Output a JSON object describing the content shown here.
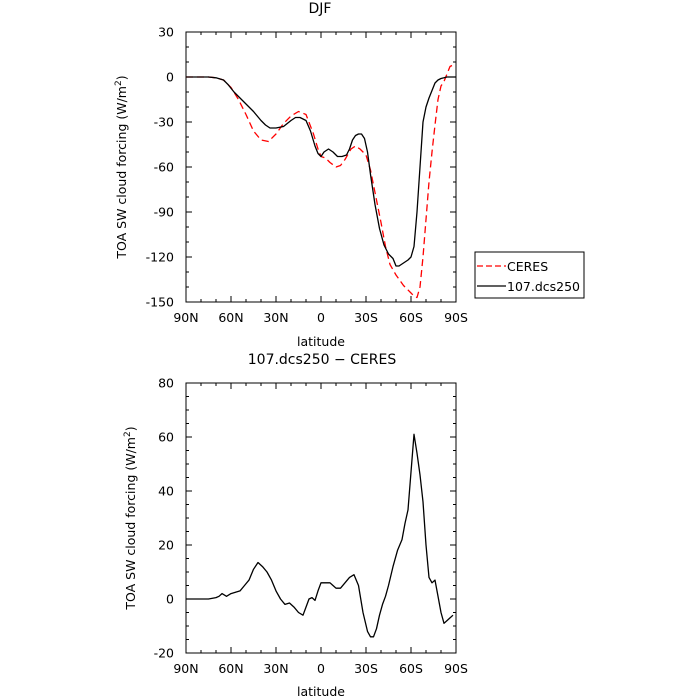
{
  "chart_data": [
    {
      "type": "line",
      "title": "DJF",
      "xlabel": "latitude",
      "ylabel": "TOA SW cloud forcing (W/m",
      "ylabel_sup": "2",
      "ylabel_close": ")",
      "xlim": [
        90,
        -90
      ],
      "ylim": [
        -150,
        30
      ],
      "xticks": [
        {
          "value": 90,
          "label": "90N"
        },
        {
          "value": 60,
          "label": "60N"
        },
        {
          "value": 30,
          "label": "30N"
        },
        {
          "value": 0,
          "label": "0"
        },
        {
          "value": -30,
          "label": "30S"
        },
        {
          "value": -60,
          "label": "60S"
        },
        {
          "value": -90,
          "label": "90S"
        }
      ],
      "yticks": [
        {
          "value": 30,
          "label": "30"
        },
        {
          "value": 0,
          "label": "0"
        },
        {
          "value": -30,
          "label": "-30"
        },
        {
          "value": -60,
          "label": "-60"
        },
        {
          "value": -90,
          "label": "-90"
        },
        {
          "value": -120,
          "label": "-120"
        },
        {
          "value": -150,
          "label": "-150"
        }
      ],
      "legend": {
        "placement": "outside-right",
        "entries": [
          "CERES",
          "107.dcs250"
        ]
      },
      "series": [
        {
          "name": "CERES",
          "color": "#ff0000",
          "dash": "dashed",
          "x": [
            90,
            85,
            80,
            75,
            70,
            65,
            60,
            55,
            50,
            45,
            40,
            35,
            30,
            25,
            20,
            15,
            10,
            5,
            2,
            0,
            -3,
            -6,
            -10,
            -13,
            -16,
            -20,
            -23,
            -26,
            -30,
            -33,
            -36,
            -40,
            -43,
            -46,
            -50,
            -55,
            -60,
            -62,
            -64,
            -66,
            -68,
            -70,
            -72,
            -74,
            -76,
            -78,
            -80,
            -82,
            -84,
            -86,
            -88
          ],
          "values": [
            0,
            0,
            0,
            0,
            -0.5,
            -2,
            -7,
            -15,
            -25,
            -36,
            -42,
            -43,
            -38,
            -31,
            -26,
            -23,
            -25,
            -38,
            -48,
            -53,
            -54,
            -57,
            -60,
            -59,
            -55,
            -48,
            -46,
            -48,
            -52,
            -62,
            -77,
            -97,
            -113,
            -125,
            -132,
            -139,
            -144,
            -146,
            -147,
            -140,
            -120,
            -95,
            -70,
            -50,
            -32,
            -15,
            -6,
            -3,
            2,
            7,
            8
          ]
        },
        {
          "name": "107.dcs250",
          "color": "#000000",
          "dash": "solid",
          "x": [
            90,
            85,
            80,
            75,
            70,
            65,
            62,
            58,
            55,
            50,
            45,
            40,
            37,
            34,
            30,
            25,
            20,
            17,
            14,
            10,
            7,
            4,
            2,
            0,
            -2,
            -5,
            -8,
            -11,
            -14,
            -17,
            -19,
            -21,
            -23,
            -25,
            -27,
            -29,
            -31,
            -33,
            -36,
            -39,
            -42,
            -45,
            -48,
            -50,
            -52,
            -55,
            -58,
            -60,
            -62,
            -64,
            -66,
            -68,
            -70,
            -72,
            -74,
            -76,
            -78,
            -80,
            -82,
            -84,
            -86,
            -88,
            -90
          ],
          "values": [
            0,
            0,
            0,
            0,
            -0.5,
            -2,
            -5,
            -10,
            -13,
            -18,
            -23,
            -29,
            -32,
            -34,
            -34,
            -33,
            -29,
            -27,
            -27,
            -29,
            -36,
            -46,
            -51,
            -53,
            -50,
            -48,
            -50,
            -53,
            -53,
            -52,
            -48,
            -42,
            -39,
            -38,
            -38,
            -41,
            -50,
            -65,
            -85,
            -101,
            -112,
            -118,
            -121,
            -126,
            -126,
            -124,
            -122,
            -120,
            -113,
            -90,
            -60,
            -30,
            -20,
            -14,
            -9,
            -4,
            -2,
            -1,
            -0.5,
            0,
            0,
            0,
            0
          ]
        }
      ]
    },
    {
      "type": "line",
      "title": "107.dcs250 − CERES",
      "xlabel": "latitude",
      "ylabel": "TOA SW cloud forcing (W/m",
      "ylabel_sup": "2",
      "ylabel_close": ")",
      "xlim": [
        90,
        -90
      ],
      "ylim": [
        -20,
        80
      ],
      "xticks": [
        {
          "value": 90,
          "label": "90N"
        },
        {
          "value": 60,
          "label": "60N"
        },
        {
          "value": 30,
          "label": "30N"
        },
        {
          "value": 0,
          "label": "0"
        },
        {
          "value": -30,
          "label": "30S"
        },
        {
          "value": -60,
          "label": "60S"
        },
        {
          "value": -90,
          "label": "90S"
        }
      ],
      "yticks": [
        {
          "value": 80,
          "label": "80"
        },
        {
          "value": 60,
          "label": "60"
        },
        {
          "value": 40,
          "label": "40"
        },
        {
          "value": 20,
          "label": "20"
        },
        {
          "value": 0,
          "label": "0"
        },
        {
          "value": -20,
          "label": "-20"
        }
      ],
      "series": [
        {
          "name": "107.dcs250 − CERES",
          "color": "#000000",
          "dash": "solid",
          "x": [
            90,
            80,
            75,
            70,
            68,
            66,
            63,
            60,
            57,
            54,
            51,
            48,
            45,
            42,
            39,
            36,
            33,
            30,
            27,
            24,
            21,
            18,
            15,
            12,
            10,
            8,
            6,
            4,
            2,
            0,
            -2,
            -4,
            -6,
            -8,
            -10,
            -13,
            -16,
            -19,
            -22,
            -25,
            -28,
            -31,
            -33,
            -35,
            -37,
            -39,
            -41,
            -43,
            -45,
            -48,
            -51,
            -54,
            -56,
            -58,
            -60,
            -62,
            -64,
            -66,
            -68,
            -70,
            -72,
            -74,
            -76,
            -78,
            -80,
            -82,
            -84,
            -86,
            -88
          ],
          "values": [
            0,
            0,
            0,
            0.5,
            1,
            2,
            1,
            2,
            2.5,
            3,
            5,
            7,
            11,
            13.5,
            12,
            10,
            7,
            3,
            0,
            -2,
            -1.5,
            -3,
            -5,
            -6,
            -3,
            0,
            0.5,
            -0.5,
            3,
            6,
            6,
            6,
            6,
            5,
            4,
            4,
            6,
            8,
            9,
            5,
            -5,
            -12,
            -14,
            -14,
            -11,
            -6,
            -2,
            1,
            5,
            12,
            18,
            22,
            28,
            33,
            47,
            61,
            54,
            46,
            36,
            20,
            8,
            6,
            7,
            1,
            -5,
            -9,
            -8,
            -7,
            -6
          ]
        }
      ]
    }
  ]
}
